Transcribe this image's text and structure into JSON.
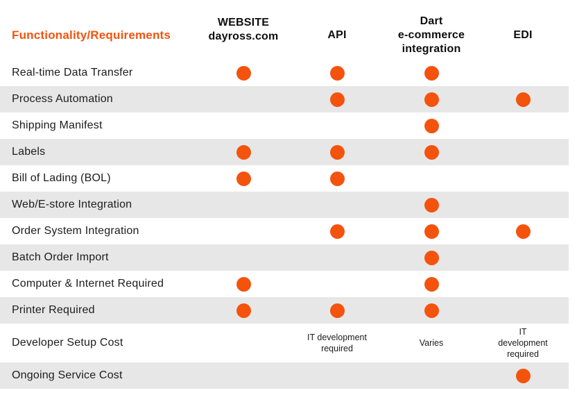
{
  "title": "Functionality/Requirements comparison table",
  "colors": {
    "accent": "#F4530D",
    "stripe": "#E7E7E7",
    "header_text": "#0E0E0E",
    "body_text": "#1C1C1C"
  },
  "header": {
    "label_column": "Functionality/Requirements",
    "columns": [
      {
        "id": "website",
        "label_lines": [
          "WEBSITE",
          "dayross.com"
        ]
      },
      {
        "id": "api",
        "label_lines": [
          "API"
        ]
      },
      {
        "id": "dart",
        "label_lines": [
          "Dart",
          "e-commerce",
          "integration"
        ]
      },
      {
        "id": "edi",
        "label_lines": [
          "EDI"
        ]
      }
    ]
  },
  "rows": [
    {
      "label": "Real-time Data Transfer",
      "cells": [
        {
          "mark": true
        },
        {
          "mark": true
        },
        {
          "mark": true
        },
        {
          "mark": false
        }
      ]
    },
    {
      "label": "Process Automation",
      "cells": [
        {
          "mark": false
        },
        {
          "mark": true
        },
        {
          "mark": true
        },
        {
          "mark": true
        }
      ]
    },
    {
      "label": "Shipping Manifest",
      "cells": [
        {
          "mark": false
        },
        {
          "mark": false
        },
        {
          "mark": true
        },
        {
          "mark": false
        }
      ]
    },
    {
      "label": "Labels",
      "cells": [
        {
          "mark": true
        },
        {
          "mark": true
        },
        {
          "mark": true
        },
        {
          "mark": false
        }
      ]
    },
    {
      "label": "Bill of Lading (BOL)",
      "cells": [
        {
          "mark": true
        },
        {
          "mark": true
        },
        {
          "mark": false
        },
        {
          "mark": false
        }
      ]
    },
    {
      "label": "Web/E-store Integration",
      "cells": [
        {
          "mark": false
        },
        {
          "mark": false
        },
        {
          "mark": true
        },
        {
          "mark": false
        }
      ]
    },
    {
      "label": "Order System Integration",
      "cells": [
        {
          "mark": false
        },
        {
          "mark": true
        },
        {
          "mark": true
        },
        {
          "mark": true
        }
      ]
    },
    {
      "label": "Batch Order Import",
      "cells": [
        {
          "mark": false
        },
        {
          "mark": false
        },
        {
          "mark": true
        },
        {
          "mark": false
        }
      ]
    },
    {
      "label": "Computer & Internet Required",
      "cells": [
        {
          "mark": true
        },
        {
          "mark": false
        },
        {
          "mark": true
        },
        {
          "mark": false
        }
      ]
    },
    {
      "label": "Printer Required",
      "cells": [
        {
          "mark": true
        },
        {
          "mark": true
        },
        {
          "mark": true
        },
        {
          "mark": false
        }
      ]
    },
    {
      "label": "Developer Setup Cost",
      "cells": [
        {
          "mark": false
        },
        {
          "note": "IT development required"
        },
        {
          "note": "Varies"
        },
        {
          "note": "IT development required"
        }
      ]
    },
    {
      "label": "Ongoing Service Cost",
      "cells": [
        {
          "mark": false
        },
        {
          "mark": false
        },
        {
          "mark": false
        },
        {
          "mark": true
        }
      ]
    }
  ],
  "chart_data": {
    "type": "table",
    "title": "Functionality/Requirements",
    "columns": [
      "Functionality/Requirements",
      "WEBSITE dayross.com",
      "API",
      "Dart e-commerce integration",
      "EDI"
    ],
    "rows": [
      [
        "Real-time Data Transfer",
        true,
        true,
        true,
        false
      ],
      [
        "Process Automation",
        false,
        true,
        true,
        true
      ],
      [
        "Shipping Manifest",
        false,
        false,
        true,
        false
      ],
      [
        "Labels",
        true,
        true,
        true,
        false
      ],
      [
        "Bill of Lading (BOL)",
        true,
        true,
        false,
        false
      ],
      [
        "Web/E-store Integration",
        false,
        false,
        true,
        false
      ],
      [
        "Order System Integration",
        false,
        true,
        true,
        true
      ],
      [
        "Batch Order Import",
        false,
        false,
        true,
        false
      ],
      [
        "Computer & Internet Required",
        true,
        false,
        true,
        false
      ],
      [
        "Printer Required",
        true,
        true,
        true,
        false
      ],
      [
        "Developer Setup Cost",
        "",
        "IT development required",
        "Varies",
        "IT development required"
      ],
      [
        "Ongoing Service Cost",
        false,
        false,
        false,
        true
      ]
    ],
    "legend": "filled orange dot = feature available / requirement applies",
    "layout": {
      "striped_rows": true,
      "stripe_color": "#E7E7E7",
      "dot_color": "#F4530D"
    }
  }
}
